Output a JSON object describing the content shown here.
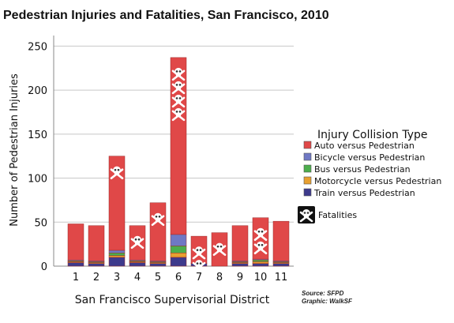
{
  "chart_data": {
    "type": "bar",
    "stacked": true,
    "title": "Pedestrian Injuries and Fatalities, San Francisco, 2010",
    "xlabel": "San Francisco Supervisorial District",
    "ylabel": "Number of Pedestrian Injuries",
    "ylim": [
      0,
      250
    ],
    "yticks": [
      0,
      50,
      100,
      150,
      200,
      250
    ],
    "grid": true,
    "legend": {
      "title": "Injury Collision Type",
      "placement": "right"
    },
    "categories": [
      "1",
      "2",
      "3",
      "4",
      "5",
      "6",
      "7",
      "8",
      "9",
      "10",
      "11"
    ],
    "series": [
      {
        "name": "Train versus Pedestrian",
        "color": "#3d3a8c",
        "values": [
          4,
          3,
          10,
          4,
          3,
          10,
          3,
          0,
          3,
          3,
          3
        ]
      },
      {
        "name": "Motorcycle versus Pedestrian",
        "color": "#e8a030",
        "values": [
          1,
          1,
          2,
          1,
          1,
          5,
          0,
          0,
          1,
          2,
          1
        ]
      },
      {
        "name": "Bus versus Pedestrian",
        "color": "#4cae4c",
        "values": [
          1,
          1,
          3,
          1,
          1,
          8,
          0,
          0,
          1,
          2,
          1
        ]
      },
      {
        "name": "Bicycle versus Pedestrian",
        "color": "#6f78c4",
        "values": [
          1,
          1,
          3,
          1,
          1,
          13,
          0,
          0,
          1,
          1,
          1
        ]
      },
      {
        "name": "Auto versus Pedestrian",
        "color": "#e04848",
        "values": [
          41,
          40,
          107,
          39,
          66,
          201,
          31,
          38,
          40,
          47,
          45
        ]
      }
    ],
    "totals": [
      48,
      46,
      125,
      46,
      72,
      237,
      34,
      38,
      46,
      55,
      51
    ],
    "fatalities": [
      0,
      0,
      1,
      1,
      1,
      4,
      2,
      1,
      0,
      2,
      0
    ],
    "fatality_legend_label": "Fatalities",
    "fatality_icon": "skull-crossbones-icon",
    "source": "Source: SFPD",
    "graphic_credit": "Graphic: WalkSF"
  }
}
